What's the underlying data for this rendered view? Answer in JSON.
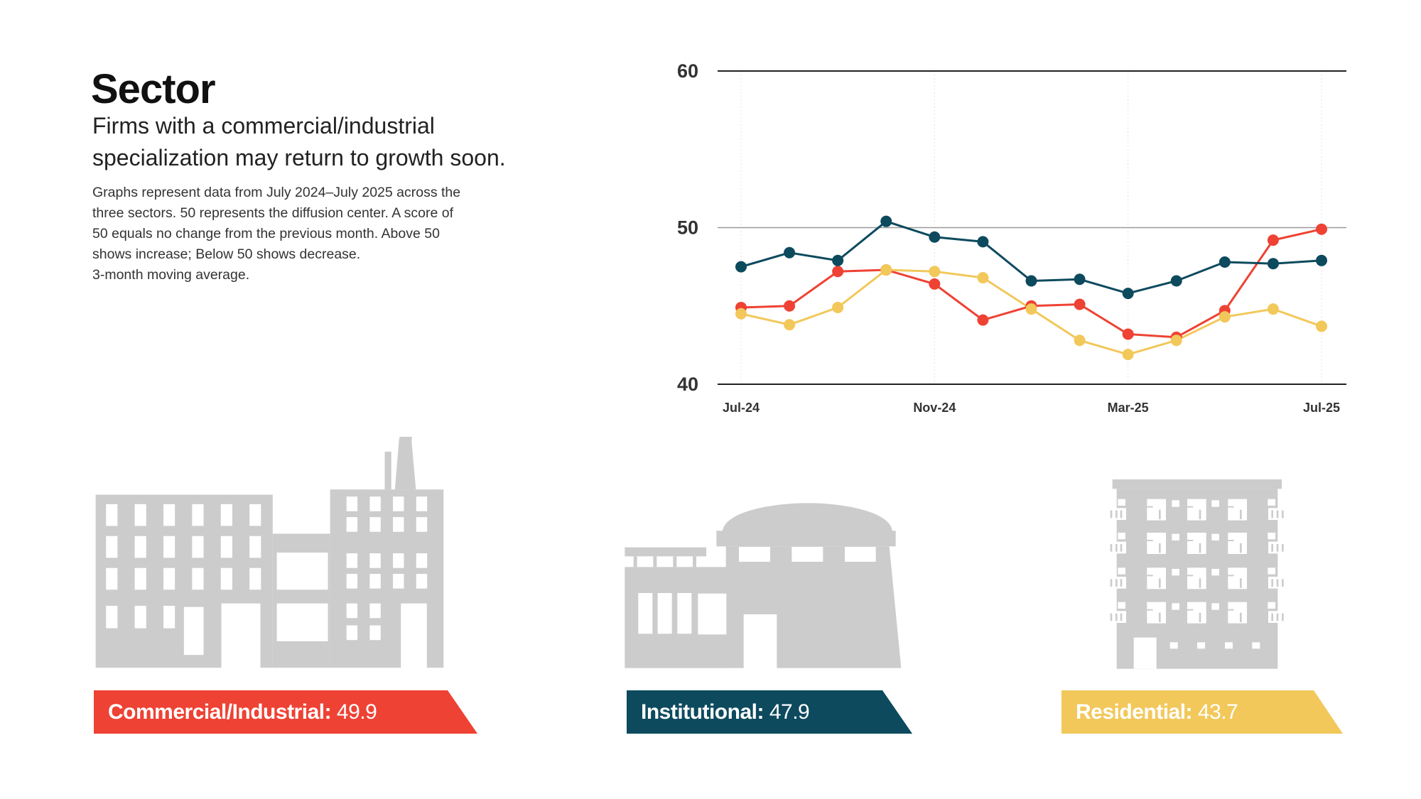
{
  "header": {
    "title": "Sector",
    "subtitle_lines": [
      "Firms with a commercial/industrial",
      "specialization may return to growth soon."
    ],
    "description_lines": [
      "Graphs represent data from July 2024–July 2025 across the",
      "three sectors. 50 represents the diffusion center. A score of",
      "50 equals no change from the previous month. Above 50",
      "shows increase; Below 50 shows decrease.",
      "3-month moving average."
    ]
  },
  "chart_data": {
    "type": "line",
    "x": [
      "Jul-24",
      "Aug-24",
      "Sep-24",
      "Oct-24",
      "Nov-24",
      "Dec-24",
      "Jan-25",
      "Feb-25",
      "Mar-25",
      "Apr-25",
      "May-25",
      "Jun-25",
      "Jul-25"
    ],
    "x_tick_labels": [
      "Jul-24",
      "Nov-24",
      "Mar-25",
      "Jul-25"
    ],
    "y_tick_labels": [
      "60",
      "50",
      "40"
    ],
    "ylim": [
      40,
      60
    ],
    "grid": "horizontal at 40, 50, 60; faint vertical at labeled months",
    "legend": "none (sector labels shown in banners below)",
    "series": [
      {
        "key": "commercial",
        "color": "#ee4234",
        "values": [
          44.9,
          45.0,
          47.2,
          47.3,
          46.4,
          44.1,
          45.0,
          45.1,
          43.2,
          43.0,
          44.7,
          49.2,
          49.9
        ]
      },
      {
        "key": "institutional",
        "color": "#0d4a5e",
        "values": [
          47.5,
          48.4,
          47.9,
          50.4,
          49.4,
          49.1,
          46.6,
          46.7,
          45.8,
          46.6,
          47.8,
          47.7,
          47.9
        ]
      },
      {
        "key": "residential",
        "color": "#f2c85b",
        "values": [
          44.5,
          43.8,
          44.9,
          47.3,
          47.2,
          46.8,
          44.8,
          42.8,
          41.9,
          42.8,
          44.3,
          44.8,
          43.7
        ]
      }
    ]
  },
  "sectors": [
    {
      "label": "Commercial/Industrial:",
      "value": "49.9",
      "color": "#ee4234",
      "icon": "factory-icon"
    },
    {
      "label": "Institutional:",
      "value": "47.9",
      "color": "#0d4a5e",
      "icon": "institutional-building-icon"
    },
    {
      "label": "Residential:",
      "value": "43.7",
      "color": "#f2c85b",
      "icon": "apartment-building-icon"
    }
  ],
  "colors": {
    "building": "#cccccc",
    "axis": "#222222",
    "midline": "#999999"
  }
}
